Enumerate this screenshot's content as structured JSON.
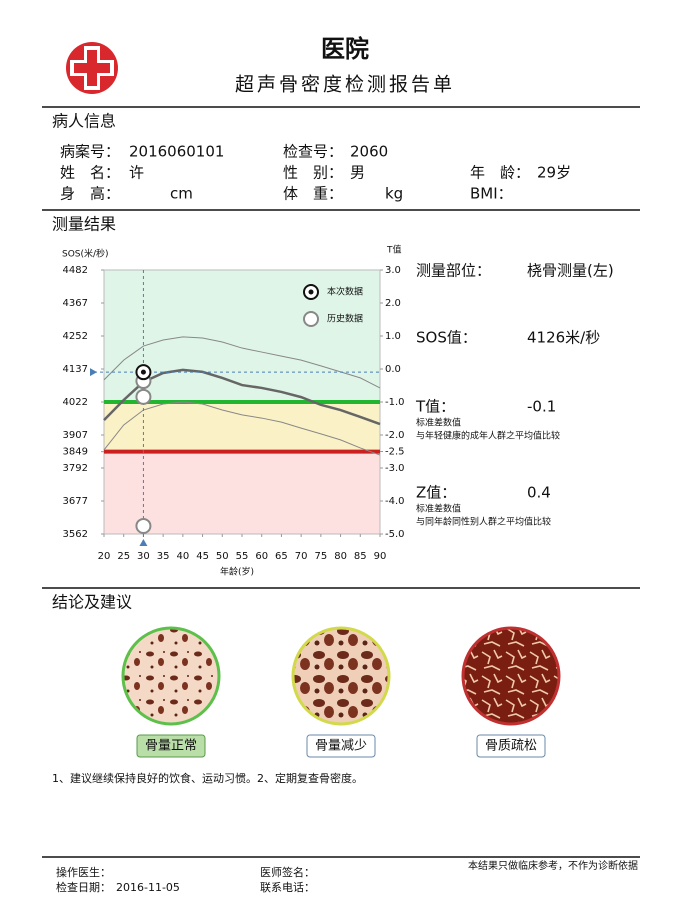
{
  "header": {
    "title": "医院",
    "subtitle": "超声骨密度检测报告单"
  },
  "patient": {
    "title": "病人信息",
    "fields": [
      {
        "label": "病案号：",
        "value": "2016060101"
      },
      {
        "label": "检查号：",
        "value": "2060"
      },
      {
        "label": "姓　名：",
        "value": "许"
      },
      {
        "label": "性　别：",
        "value": "男"
      },
      {
        "label": "年　龄：",
        "value": "29岁"
      },
      {
        "label": "身　高：",
        "unit": "cm"
      },
      {
        "label": "体　重：",
        "unit": "kg"
      },
      {
        "label": "BMI："
      }
    ]
  },
  "results": {
    "title": "测量结果",
    "site_label": "测量部位：",
    "site": "桡骨测量(左)",
    "sos_label": "SOS值：",
    "sos": "4126米/秒",
    "t_label": "T值：",
    "t": "-0.1",
    "t_notes": [
      "标准差数值",
      "与年轻健康的成年人群之平均值比较"
    ],
    "z_label": "Z值：",
    "z": "0.4",
    "z_notes": [
      "标准差数值",
      "与同年龄同性别人群之平均值比较"
    ]
  },
  "chart_data": {
    "type": "line",
    "ylabel": "SOS(米/秒)",
    "y2label": "T值",
    "xlabel": "年龄(岁)",
    "xlim": [
      20,
      90
    ],
    "xticks": [
      20,
      25,
      30,
      35,
      40,
      45,
      50,
      55,
      60,
      65,
      70,
      75,
      80,
      85,
      90
    ],
    "ylim": [
      3562,
      4482
    ],
    "yticks": [
      3562,
      3677,
      3792,
      3849,
      3907,
      4022,
      4137,
      4252,
      4367,
      4482
    ],
    "y2lim": [
      -5,
      3
    ],
    "y2ticks": [
      {
        "value": 3,
        "label": "3.0"
      },
      {
        "value": 2,
        "label": "2.0"
      },
      {
        "value": 1,
        "label": "1.0"
      },
      {
        "value": 0,
        "label": "0.0"
      },
      {
        "value": -1,
        "label": "-1.0"
      },
      {
        "value": -2,
        "label": "-2.0"
      },
      {
        "value": -2.5,
        "label": "-2.5"
      },
      {
        "value": -3,
        "label": "-3.0"
      },
      {
        "value": -4,
        "label": "-4.0"
      },
      {
        "value": -5,
        "label": "-5.0"
      }
    ],
    "band_colors": [
      "#dff5e8",
      "#fbf1c6",
      "#fde1e1"
    ],
    "reference_lines": [
      {
        "value": 4022,
        "color": "#22b530"
      },
      {
        "value": 3849,
        "color": "#cc1f1f"
      }
    ],
    "curves": [
      {
        "color": "#666666",
        "line_style": "bold",
        "x": [
          20,
          25,
          30,
          35,
          40,
          45,
          50,
          55,
          60,
          65,
          70,
          75,
          80,
          85,
          90
        ],
        "values": [
          3959,
          4029,
          4092,
          4123,
          4134,
          4127,
          4106,
          4081,
          4071,
          4057,
          4039,
          4012,
          3994,
          3970,
          3945
        ]
      },
      {
        "color": "#888888",
        "line_style": "thin",
        "x": [
          20,
          25,
          30,
          35,
          40,
          45,
          50,
          55,
          60,
          65,
          70,
          75,
          80,
          85,
          90
        ],
        "values": [
          4099,
          4168,
          4217,
          4238,
          4249,
          4245,
          4231,
          4210,
          4196,
          4182,
          4168,
          4148,
          4127,
          4106,
          4071
        ]
      },
      {
        "color": "#888888",
        "line_style": "thin",
        "x": [
          20,
          25,
          30,
          35,
          40,
          45,
          50,
          55,
          60,
          65,
          70,
          75,
          80,
          85,
          90
        ],
        "values": [
          3855,
          3942,
          3994,
          4015,
          4022,
          4015,
          3994,
          3977,
          3966,
          3952,
          3931,
          3911,
          3890,
          3862,
          3837
        ]
      }
    ],
    "series": [
      {
        "name": "本次数据",
        "marker": "bullseye",
        "color": "#111111",
        "x": [
          30
        ],
        "values": [
          4126
        ]
      },
      {
        "name": "历史数据",
        "marker": "circle",
        "color": "#888888",
        "x": [
          30,
          30,
          30
        ],
        "values": [
          4095,
          4040,
          3590
        ]
      }
    ],
    "crosshair_color": "#4a7fb5"
  },
  "conclusion": {
    "title": "结论及建议",
    "images": [
      {
        "label": "骨量正常",
        "selected": true
      },
      {
        "label": "骨量减少",
        "selected": false
      },
      {
        "label": "骨质疏松",
        "selected": false
      }
    ],
    "advice": "1、建议继续保持良好的饮食、运动习惯。2、定期复查骨密度。"
  },
  "footer": {
    "operator": "操作医生：",
    "signature": "医师签名：",
    "note": "本结果只做临床参考，不作为诊断依据",
    "date_label": "检查日期：",
    "date": "2016-11-05",
    "phone": "联系电话："
  }
}
